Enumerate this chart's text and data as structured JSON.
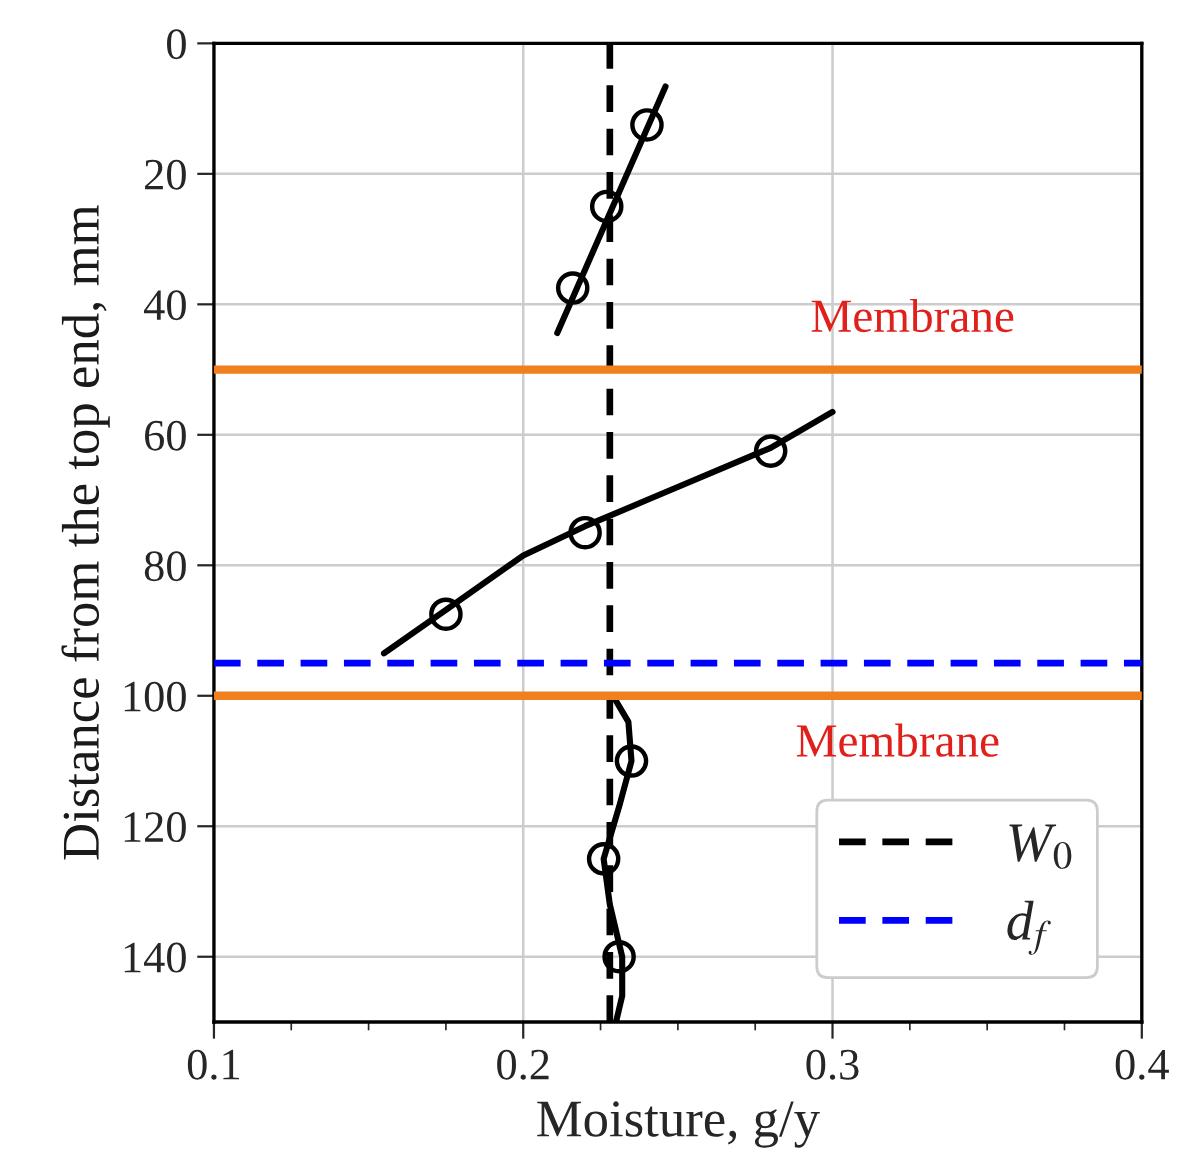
{
  "chart_data": {
    "type": "line",
    "xlabel": "Moisture, g/y",
    "ylabel": "Distance from the top end, mm",
    "series": [
      {
        "color": "#000000",
        "x": [
          0.246,
          0.211
        ],
        "values": [
          6.6,
          44.4
        ]
      },
      {
        "color": "#000000",
        "x": [
          0.3,
          0.28,
          0.24,
          0.22,
          0.2,
          0.176,
          0.155
        ],
        "values": [
          56.5,
          62,
          70,
          74,
          78.5,
          86.5,
          93.5
        ]
      },
      {
        "color": "#000000",
        "x": [
          0.229,
          0.234,
          0.235,
          0.231,
          0.226,
          0.228,
          0.232,
          0.232,
          0.23
        ],
        "values": [
          100,
          104,
          110,
          117,
          125,
          132,
          140,
          146,
          150
        ]
      },
      {
        "type": "scatter",
        "color": "#000000",
        "marker": "circle",
        "x": [
          0.24,
          0.227,
          0.216,
          0.28,
          0.22,
          0.175,
          0.235,
          0.226,
          0.231
        ],
        "values": [
          12.5,
          25,
          37.5,
          62.5,
          75,
          87.5,
          110,
          125,
          140
        ]
      }
    ],
    "ref_lines": [
      {
        "axis": "x",
        "value": 0.228,
        "label": "W$_{0}$",
        "color": "#000000",
        "line_style": "dashed"
      },
      {
        "axis": "y",
        "value": 95,
        "label": "d$_{f}$",
        "color": "#0000ff",
        "line_style": "dashed"
      },
      {
        "axis": "y",
        "value": 50,
        "color": "#f07f1e",
        "line_style": "solid"
      },
      {
        "axis": "y",
        "value": 100,
        "color": "#f07f1e",
        "line_style": "solid"
      }
    ],
    "annotations": [
      "Membrane",
      "Membrane"
    ],
    "xlim": [
      0.1,
      0.4
    ],
    "xticks": [
      0.1,
      {
        "value": 0.125,
        "label": null
      },
      {
        "value": 0.15,
        "label": null
      },
      {
        "value": 0.175,
        "label": null
      },
      0.2,
      {
        "value": 0.225,
        "label": null
      },
      {
        "value": 0.25,
        "label": null
      },
      {
        "value": 0.275,
        "label": null
      },
      0.3,
      {
        "value": 0.325,
        "label": null
      },
      {
        "value": 0.35,
        "label": null
      },
      {
        "value": 0.375,
        "label": null
      },
      0.4
    ],
    "ylim": [
      150,
      0
    ],
    "yticks": [
      0,
      20,
      40,
      60,
      80,
      100,
      120,
      140
    ],
    "grid": true,
    "legend": "bottom right"
  }
}
